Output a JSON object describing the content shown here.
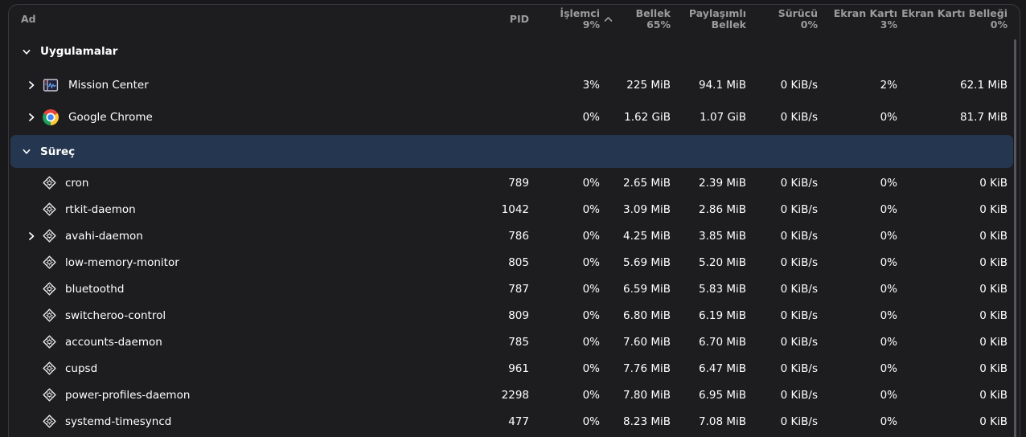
{
  "colors": {
    "window_bg": "#19191b",
    "card_bg": "#1d1d20",
    "card_border": "#39393d",
    "selected_row_bg": "#253750",
    "header_text": "#9b9b9b",
    "row_text": "#ffffff",
    "scrollbar": "#56565c",
    "waveform_blue": "#62a0ea"
  },
  "header": {
    "name": "Ad",
    "pid": "PID",
    "cpu": [
      "İşlemci",
      "9%"
    ],
    "sort_icon": "chevron-up-icon",
    "mem": [
      "Bellek",
      "65%"
    ],
    "shared": [
      "Paylaşımlı",
      "Bellek"
    ],
    "drive": [
      "Sürücü",
      "0%"
    ],
    "gpu": [
      "Ekran Kartı",
      "3%"
    ],
    "gpumem": [
      "Ekran Kartı Belleği",
      "0%"
    ]
  },
  "groups": [
    {
      "label": "Uygulamalar",
      "collapse_icon": "chevron-down-icon",
      "selected": false,
      "row_type": "app",
      "rows": [
        {
          "name": "Mission Center",
          "icon": "mission-center-icon",
          "expand_icon": "chevron-right-icon",
          "pid": "",
          "cpu": "3%",
          "mem": "225 MiB",
          "shared": "94.1 MiB",
          "drive": "0 KiB/s",
          "gpu": "2%",
          "gpumem": "62.1 MiB"
        },
        {
          "name": "Google Chrome",
          "icon": "chrome-icon",
          "expand_icon": "chevron-right-icon",
          "pid": "",
          "cpu": "0%",
          "mem": "1.62 GiB",
          "shared": "1.07 GiB",
          "drive": "0 KiB/s",
          "gpu": "0%",
          "gpumem": "81.7 MiB"
        }
      ]
    },
    {
      "label": "Süreç",
      "collapse_icon": "chevron-down-icon",
      "selected": true,
      "row_type": "process",
      "rows": [
        {
          "name": "cron",
          "icon": "executable-gear-icon",
          "expand_icon": "",
          "pid": "789",
          "cpu": "0%",
          "mem": "2.65 MiB",
          "shared": "2.39 MiB",
          "drive": "0 KiB/s",
          "gpu": "0%",
          "gpumem": "0 KiB"
        },
        {
          "name": "rtkit-daemon",
          "icon": "executable-gear-icon",
          "expand_icon": "",
          "pid": "1042",
          "cpu": "0%",
          "mem": "3.09 MiB",
          "shared": "2.86 MiB",
          "drive": "0 KiB/s",
          "gpu": "0%",
          "gpumem": "0 KiB"
        },
        {
          "name": "avahi-daemon",
          "icon": "executable-gear-icon",
          "expand_icon": "chevron-right-icon",
          "pid": "786",
          "cpu": "0%",
          "mem": "4.25 MiB",
          "shared": "3.85 MiB",
          "drive": "0 KiB/s",
          "gpu": "0%",
          "gpumem": "0 KiB"
        },
        {
          "name": "low-memory-monitor",
          "icon": "executable-gear-icon",
          "expand_icon": "",
          "pid": "805",
          "cpu": "0%",
          "mem": "5.69 MiB",
          "shared": "5.20 MiB",
          "drive": "0 KiB/s",
          "gpu": "0%",
          "gpumem": "0 KiB"
        },
        {
          "name": "bluetoothd",
          "icon": "executable-gear-icon",
          "expand_icon": "",
          "pid": "787",
          "cpu": "0%",
          "mem": "6.59 MiB",
          "shared": "5.83 MiB",
          "drive": "0 KiB/s",
          "gpu": "0%",
          "gpumem": "0 KiB"
        },
        {
          "name": "switcheroo-control",
          "icon": "executable-gear-icon",
          "expand_icon": "",
          "pid": "809",
          "cpu": "0%",
          "mem": "6.80 MiB",
          "shared": "6.19 MiB",
          "drive": "0 KiB/s",
          "gpu": "0%",
          "gpumem": "0 KiB"
        },
        {
          "name": "accounts-daemon",
          "icon": "executable-gear-icon",
          "expand_icon": "",
          "pid": "785",
          "cpu": "0%",
          "mem": "7.60 MiB",
          "shared": "6.70 MiB",
          "drive": "0 KiB/s",
          "gpu": "0%",
          "gpumem": "0 KiB"
        },
        {
          "name": "cupsd",
          "icon": "executable-gear-icon",
          "expand_icon": "",
          "pid": "961",
          "cpu": "0%",
          "mem": "7.76 MiB",
          "shared": "6.47 MiB",
          "drive": "0 KiB/s",
          "gpu": "0%",
          "gpumem": "0 KiB"
        },
        {
          "name": "power-profiles-daemon",
          "icon": "executable-gear-icon",
          "expand_icon": "",
          "pid": "2298",
          "cpu": "0%",
          "mem": "7.80 MiB",
          "shared": "6.95 MiB",
          "drive": "0 KiB/s",
          "gpu": "0%",
          "gpumem": "0 KiB"
        },
        {
          "name": "systemd-timesyncd",
          "icon": "executable-gear-icon",
          "expand_icon": "",
          "pid": "477",
          "cpu": "0%",
          "mem": "8.23 MiB",
          "shared": "7.08 MiB",
          "drive": "0 KiB/s",
          "gpu": "0%",
          "gpumem": "0 KiB"
        }
      ]
    }
  ]
}
